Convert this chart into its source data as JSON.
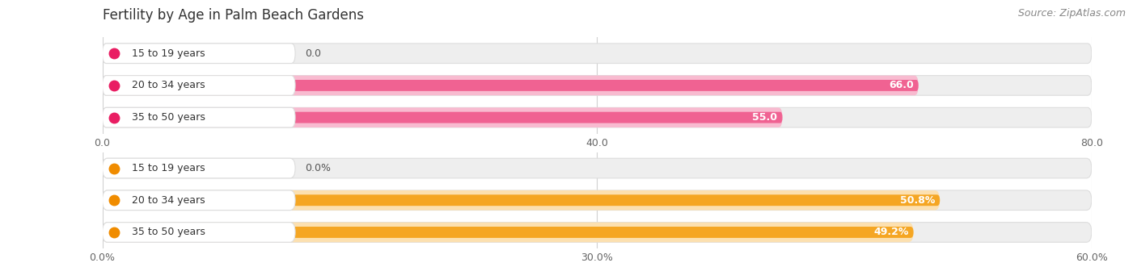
{
  "title": "Fertility by Age in Palm Beach Gardens",
  "source": "Source: ZipAtlas.com",
  "top_section": {
    "categories": [
      "15 to 19 years",
      "20 to 34 years",
      "35 to 50 years"
    ],
    "values": [
      0.0,
      66.0,
      55.0
    ],
    "xlim": [
      0,
      80
    ],
    "xticks": [
      0.0,
      40.0,
      80.0
    ],
    "xtick_labels": [
      "0.0",
      "40.0",
      "80.0"
    ],
    "bar_color": "#f06292",
    "bar_color_light": "#f8bbd0",
    "dot_color": "#e91e63",
    "label_bg": "#ffffff",
    "track_bg": "#eeeeee",
    "track_edge": "#dddddd"
  },
  "bottom_section": {
    "categories": [
      "15 to 19 years",
      "20 to 34 years",
      "35 to 50 years"
    ],
    "values": [
      0.0,
      50.8,
      49.2
    ],
    "xlim": [
      0,
      60
    ],
    "xticks": [
      0.0,
      30.0,
      60.0
    ],
    "xtick_labels": [
      "0.0%",
      "30.0%",
      "60.0%"
    ],
    "bar_color": "#f5a623",
    "bar_color_light": "#fce0b0",
    "dot_color": "#f08c00",
    "label_bg": "#ffffff",
    "track_bg": "#eeeeee",
    "track_edge": "#dddddd"
  },
  "title_fontsize": 12,
  "label_fontsize": 9,
  "tick_fontsize": 9,
  "source_fontsize": 9
}
